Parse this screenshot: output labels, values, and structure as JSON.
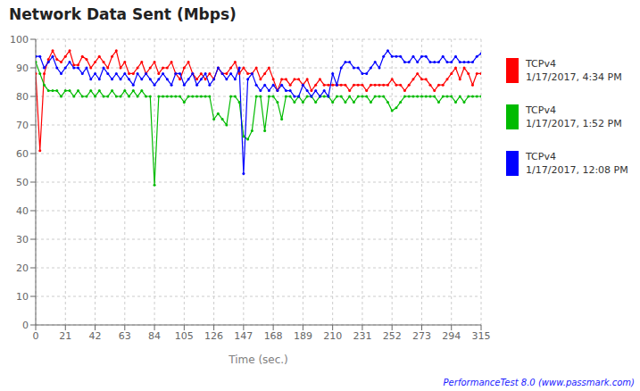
{
  "chart_data": {
    "type": "line",
    "title": "Network Data Sent (Mbps)",
    "xlabel": "Time (sec.)",
    "annotations": [
      "PerformanceTest 8.0 (www.passmark.com)"
    ],
    "x": [
      0,
      3,
      6,
      9,
      12,
      15,
      18,
      21,
      24,
      27,
      30,
      33,
      36,
      39,
      42,
      45,
      48,
      51,
      54,
      57,
      60,
      63,
      66,
      69,
      72,
      75,
      78,
      81,
      84,
      87,
      90,
      93,
      96,
      99,
      102,
      105,
      108,
      111,
      114,
      117,
      120,
      123,
      126,
      129,
      132,
      135,
      138,
      141,
      144,
      147,
      150,
      153,
      156,
      159,
      162,
      165,
      168,
      171,
      174,
      177,
      180,
      183,
      186,
      189,
      192,
      195,
      198,
      201,
      204,
      207,
      210,
      213,
      216,
      219,
      222,
      225,
      228,
      231,
      234,
      237,
      240,
      243,
      246,
      249,
      252,
      255,
      258,
      261,
      264,
      267,
      270,
      273,
      276,
      279,
      282,
      285,
      288,
      291,
      294,
      297,
      300,
      303,
      306,
      309,
      312,
      315
    ],
    "series": [
      {
        "name": "TCPv4\n1/17/2017, 4:34 PM",
        "color": "#ff0000",
        "values": [
          88,
          61,
          88,
          93,
          96,
          93,
          92,
          94,
          96,
          91,
          91,
          94,
          93,
          90,
          92,
          94,
          92,
          90,
          94,
          96,
          90,
          92,
          88,
          88,
          90,
          92,
          88,
          90,
          92,
          88,
          90,
          90,
          92,
          88,
          86,
          90,
          92,
          88,
          86,
          88,
          86,
          88,
          86,
          90,
          88,
          88,
          90,
          92,
          88,
          90,
          88,
          88,
          90,
          86,
          88,
          90,
          86,
          82,
          86,
          86,
          84,
          86,
          86,
          84,
          86,
          82,
          84,
          86,
          84,
          84,
          84,
          84,
          84,
          84,
          82,
          84,
          84,
          84,
          82,
          84,
          84,
          84,
          84,
          84,
          86,
          84,
          84,
          82,
          84,
          86,
          88,
          86,
          86,
          84,
          82,
          84,
          84,
          86,
          88,
          90,
          86,
          90,
          88,
          84,
          88,
          88
        ]
      },
      {
        "name": "TCPv4\n1/17/2017, 1:52 PM",
        "color": "#00bb00",
        "values": [
          92,
          88,
          84,
          82,
          82,
          82,
          80,
          82,
          82,
          80,
          82,
          80,
          80,
          82,
          80,
          82,
          80,
          80,
          82,
          80,
          80,
          82,
          80,
          82,
          80,
          82,
          80,
          80,
          49,
          80,
          80,
          80,
          80,
          80,
          80,
          78,
          80,
          80,
          80,
          80,
          80,
          80,
          72,
          74,
          72,
          70,
          80,
          80,
          78,
          66,
          65,
          68,
          80,
          80,
          68,
          80,
          80,
          78,
          72,
          80,
          80,
          78,
          80,
          78,
          80,
          80,
          78,
          80,
          80,
          80,
          78,
          80,
          80,
          78,
          80,
          78,
          80,
          80,
          80,
          78,
          80,
          80,
          80,
          78,
          75,
          76,
          78,
          80,
          80,
          80,
          80,
          80,
          80,
          80,
          80,
          78,
          80,
          80,
          80,
          78,
          80,
          78,
          80,
          80,
          80,
          80
        ]
      },
      {
        "name": "TCPv4\n1/17/2017, 12:08 PM",
        "color": "#0000ff",
        "values": [
          94,
          94,
          90,
          92,
          94,
          90,
          88,
          90,
          92,
          90,
          90,
          88,
          90,
          86,
          88,
          86,
          90,
          88,
          86,
          88,
          86,
          88,
          86,
          84,
          88,
          86,
          88,
          86,
          84,
          86,
          88,
          86,
          84,
          88,
          88,
          84,
          86,
          88,
          84,
          86,
          88,
          84,
          86,
          90,
          88,
          86,
          88,
          86,
          90,
          53,
          86,
          88,
          84,
          82,
          84,
          82,
          84,
          82,
          84,
          82,
          82,
          80,
          80,
          84,
          82,
          80,
          82,
          80,
          82,
          80,
          88,
          84,
          90,
          92,
          92,
          90,
          90,
          88,
          88,
          90,
          92,
          90,
          94,
          96,
          94,
          94,
          94,
          92,
          92,
          94,
          92,
          94,
          94,
          92,
          92,
          92,
          94,
          92,
          92,
          94,
          92,
          92,
          92,
          92,
          94,
          95
        ]
      }
    ],
    "xlim": [
      0,
      315
    ],
    "ylim": [
      0,
      100
    ],
    "xticks": [
      0,
      21,
      42,
      63,
      84,
      105,
      126,
      147,
      168,
      189,
      210,
      231,
      252,
      273,
      294,
      315
    ],
    "yticks": [
      0,
      10,
      20,
      30,
      40,
      50,
      60,
      70,
      80,
      90,
      100
    ],
    "grid": true,
    "legend": "right",
    "marker": "circle"
  }
}
